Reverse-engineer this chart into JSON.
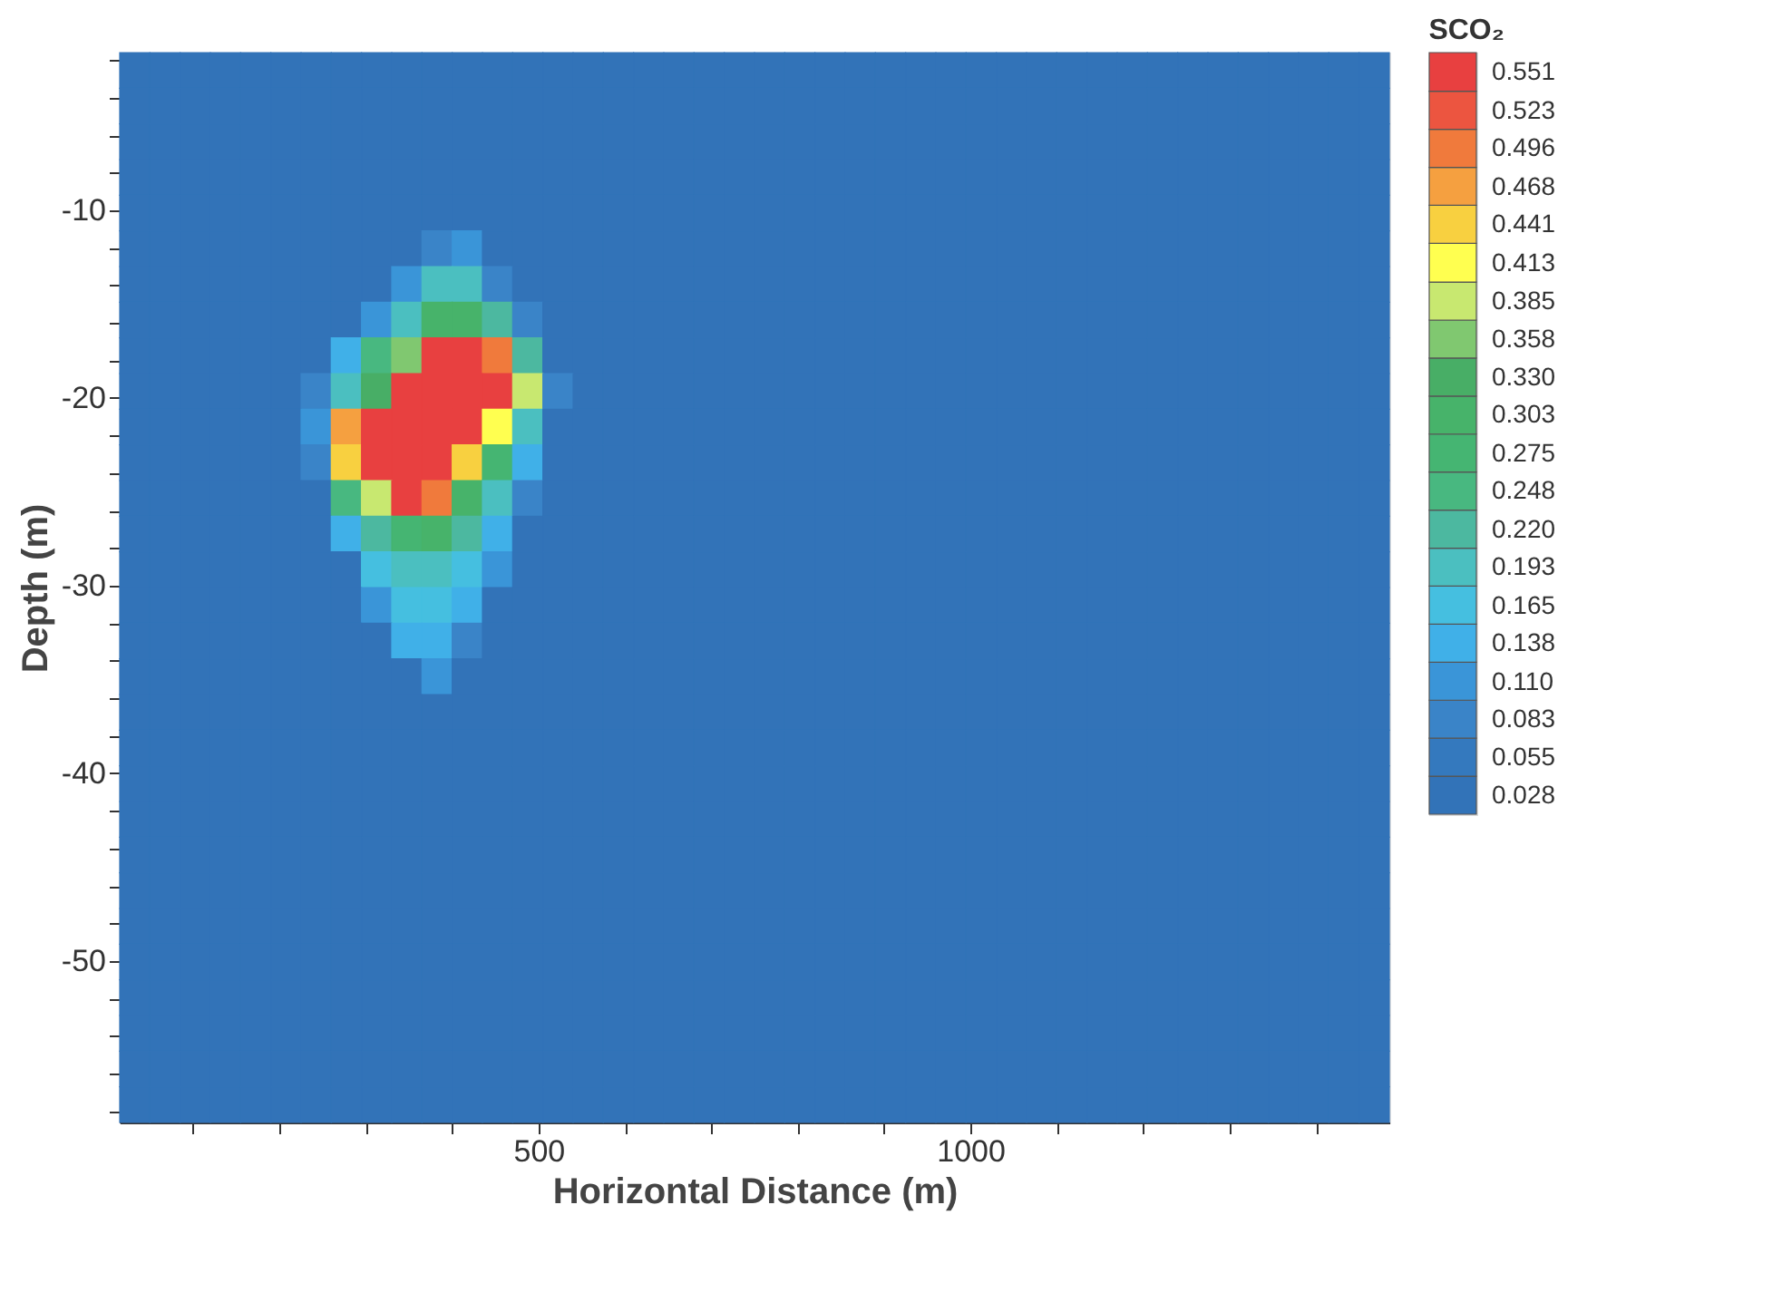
{
  "chart_data": {
    "type": "heatmap",
    "xlabel": "Horizontal Distance (m)",
    "ylabel": "Depth (m)",
    "legend_title": "SCO₂",
    "x": [
      32.5,
      67.5,
      102.5,
      137.5,
      172.5,
      207.5,
      242.5,
      277.5,
      312.5,
      347.5,
      382.5,
      417.5,
      452.5,
      487.5,
      522.5,
      557.5,
      592.5,
      627.5,
      662.5,
      697.5,
      732.5,
      767.5,
      802.5,
      837.5,
      872.5,
      907.5,
      942.5,
      977.5,
      1012.5,
      1047.5,
      1082.5,
      1117.5,
      1152.5,
      1187.5,
      1222.5,
      1257.5,
      1292.5,
      1327.5,
      1362.5,
      1397.5,
      1432.5,
      1467.5
    ],
    "y": [
      -2.55,
      -4.45,
      -6.35,
      -8.25,
      -10.15,
      -12.05,
      -13.95,
      -15.85,
      -17.75,
      -19.65,
      -21.55,
      -23.45,
      -25.35,
      -27.25,
      -29.15,
      -31.05,
      -32.95,
      -34.85,
      -36.75,
      -38.65,
      -40.55,
      -42.45,
      -44.35,
      -46.25,
      -48.15,
      -50.05,
      -51.95,
      -53.85,
      -55.75,
      -57.65
    ],
    "cells": [
      [
        0.028,
        0.028,
        0.028,
        0.028,
        0.028,
        0.028,
        0.028,
        0.028,
        0.028,
        0.028,
        0.028,
        0.028,
        0.028,
        0.028,
        0.028,
        0.028,
        0.028,
        0.028,
        0.028,
        0.028,
        0.028,
        0.028,
        0.028,
        0.028,
        0.028,
        0.028,
        0.028,
        0.028,
        0.028,
        0.028,
        0.028,
        0.028,
        0.028,
        0.028,
        0.028,
        0.028,
        0.028,
        0.028,
        0.028,
        0.028,
        0.028,
        0.028
      ],
      [
        0.028,
        0.028,
        0.028,
        0.028,
        0.028,
        0.028,
        0.028,
        0.028,
        0.028,
        0.028,
        0.028,
        0.028,
        0.028,
        0.028,
        0.028,
        0.028,
        0.028,
        0.028,
        0.028,
        0.028,
        0.028,
        0.028,
        0.028,
        0.028,
        0.028,
        0.028,
        0.028,
        0.028,
        0.028,
        0.028,
        0.028,
        0.028,
        0.028,
        0.028,
        0.028,
        0.028,
        0.028,
        0.028,
        0.028,
        0.028,
        0.028,
        0.028
      ],
      [
        0.028,
        0.028,
        0.028,
        0.028,
        0.028,
        0.028,
        0.028,
        0.028,
        0.028,
        0.028,
        0.028,
        0.028,
        0.028,
        0.028,
        0.028,
        0.028,
        0.028,
        0.028,
        0.028,
        0.028,
        0.028,
        0.028,
        0.028,
        0.028,
        0.028,
        0.028,
        0.028,
        0.028,
        0.028,
        0.028,
        0.028,
        0.028,
        0.028,
        0.028,
        0.028,
        0.028,
        0.028,
        0.028,
        0.028,
        0.028,
        0.028,
        0.028
      ],
      [
        0.028,
        0.028,
        0.028,
        0.028,
        0.028,
        0.028,
        0.028,
        0.028,
        0.028,
        0.028,
        0.028,
        0.028,
        0.028,
        0.028,
        0.028,
        0.028,
        0.028,
        0.028,
        0.028,
        0.028,
        0.028,
        0.028,
        0.028,
        0.028,
        0.028,
        0.028,
        0.028,
        0.028,
        0.028,
        0.028,
        0.028,
        0.028,
        0.028,
        0.028,
        0.028,
        0.028,
        0.028,
        0.028,
        0.028,
        0.028,
        0.028,
        0.028
      ],
      [
        0.028,
        0.028,
        0.028,
        0.028,
        0.028,
        0.028,
        0.028,
        0.028,
        0.028,
        0.028,
        0.028,
        0.028,
        0.028,
        0.028,
        0.028,
        0.028,
        0.028,
        0.028,
        0.028,
        0.028,
        0.028,
        0.028,
        0.028,
        0.028,
        0.028,
        0.028,
        0.028,
        0.028,
        0.028,
        0.028,
        0.028,
        0.028,
        0.028,
        0.028,
        0.028,
        0.028,
        0.028,
        0.028,
        0.028,
        0.028,
        0.028,
        0.028
      ],
      [
        0.028,
        0.028,
        0.028,
        0.028,
        0.028,
        0.028,
        0.028,
        0.028,
        0.028,
        0.028,
        0.083,
        0.11,
        0.028,
        0.028,
        0.028,
        0.028,
        0.028,
        0.028,
        0.028,
        0.028,
        0.028,
        0.028,
        0.028,
        0.028,
        0.028,
        0.028,
        0.028,
        0.028,
        0.028,
        0.028,
        0.028,
        0.028,
        0.028,
        0.028,
        0.028,
        0.028,
        0.028,
        0.028,
        0.028,
        0.028,
        0.028,
        0.028
      ],
      [
        0.028,
        0.028,
        0.028,
        0.028,
        0.028,
        0.028,
        0.028,
        0.028,
        0.028,
        0.11,
        0.193,
        0.193,
        0.083,
        0.028,
        0.028,
        0.028,
        0.028,
        0.028,
        0.028,
        0.028,
        0.028,
        0.028,
        0.028,
        0.028,
        0.028,
        0.028,
        0.028,
        0.028,
        0.028,
        0.028,
        0.028,
        0.028,
        0.028,
        0.028,
        0.028,
        0.028,
        0.028,
        0.028,
        0.028,
        0.028,
        0.028,
        0.028
      ],
      [
        0.028,
        0.028,
        0.028,
        0.028,
        0.028,
        0.028,
        0.028,
        0.028,
        0.11,
        0.193,
        0.303,
        0.303,
        0.22,
        0.083,
        0.028,
        0.028,
        0.028,
        0.028,
        0.028,
        0.028,
        0.028,
        0.028,
        0.028,
        0.028,
        0.028,
        0.028,
        0.028,
        0.028,
        0.028,
        0.028,
        0.028,
        0.028,
        0.028,
        0.028,
        0.028,
        0.028,
        0.028,
        0.028,
        0.028,
        0.028,
        0.028,
        0.028
      ],
      [
        0.028,
        0.028,
        0.028,
        0.028,
        0.028,
        0.028,
        0.028,
        0.138,
        0.248,
        0.358,
        0.551,
        0.551,
        0.496,
        0.22,
        0.028,
        0.028,
        0.028,
        0.028,
        0.028,
        0.028,
        0.028,
        0.028,
        0.028,
        0.028,
        0.028,
        0.028,
        0.028,
        0.028,
        0.028,
        0.028,
        0.028,
        0.028,
        0.028,
        0.028,
        0.028,
        0.028,
        0.028,
        0.028,
        0.028,
        0.028,
        0.028,
        0.028
      ],
      [
        0.028,
        0.028,
        0.028,
        0.028,
        0.028,
        0.028,
        0.083,
        0.193,
        0.33,
        0.551,
        0.551,
        0.551,
        0.551,
        0.385,
        0.083,
        0.028,
        0.028,
        0.028,
        0.028,
        0.028,
        0.028,
        0.028,
        0.028,
        0.028,
        0.028,
        0.028,
        0.028,
        0.028,
        0.028,
        0.028,
        0.028,
        0.028,
        0.028,
        0.028,
        0.028,
        0.028,
        0.028,
        0.028,
        0.028,
        0.028,
        0.028,
        0.028
      ],
      [
        0.028,
        0.028,
        0.028,
        0.028,
        0.028,
        0.028,
        0.11,
        0.468,
        0.551,
        0.551,
        0.551,
        0.551,
        0.413,
        0.193,
        0.028,
        0.028,
        0.028,
        0.028,
        0.028,
        0.028,
        0.028,
        0.028,
        0.028,
        0.028,
        0.028,
        0.028,
        0.028,
        0.028,
        0.028,
        0.028,
        0.028,
        0.028,
        0.028,
        0.028,
        0.028,
        0.028,
        0.028,
        0.028,
        0.028,
        0.028,
        0.028,
        0.028
      ],
      [
        0.028,
        0.028,
        0.028,
        0.028,
        0.028,
        0.028,
        0.083,
        0.441,
        0.551,
        0.551,
        0.551,
        0.441,
        0.275,
        0.138,
        0.028,
        0.028,
        0.028,
        0.028,
        0.028,
        0.028,
        0.028,
        0.028,
        0.028,
        0.028,
        0.028,
        0.028,
        0.028,
        0.028,
        0.028,
        0.028,
        0.028,
        0.028,
        0.028,
        0.028,
        0.028,
        0.028,
        0.028,
        0.028,
        0.028,
        0.028,
        0.028,
        0.028
      ],
      [
        0.028,
        0.028,
        0.028,
        0.028,
        0.028,
        0.028,
        0.028,
        0.248,
        0.385,
        0.551,
        0.496,
        0.303,
        0.193,
        0.083,
        0.028,
        0.028,
        0.028,
        0.028,
        0.028,
        0.028,
        0.028,
        0.028,
        0.028,
        0.028,
        0.028,
        0.028,
        0.028,
        0.028,
        0.028,
        0.028,
        0.028,
        0.028,
        0.028,
        0.028,
        0.028,
        0.028,
        0.028,
        0.028,
        0.028,
        0.028,
        0.028,
        0.028
      ],
      [
        0.028,
        0.028,
        0.028,
        0.028,
        0.028,
        0.028,
        0.028,
        0.138,
        0.22,
        0.275,
        0.303,
        0.22,
        0.138,
        0.028,
        0.028,
        0.028,
        0.028,
        0.028,
        0.028,
        0.028,
        0.028,
        0.028,
        0.028,
        0.028,
        0.028,
        0.028,
        0.028,
        0.028,
        0.028,
        0.028,
        0.028,
        0.028,
        0.028,
        0.028,
        0.028,
        0.028,
        0.028,
        0.028,
        0.028,
        0.028,
        0.028,
        0.028
      ],
      [
        0.028,
        0.028,
        0.028,
        0.028,
        0.028,
        0.028,
        0.028,
        0.028,
        0.165,
        0.193,
        0.193,
        0.165,
        0.11,
        0.028,
        0.028,
        0.028,
        0.028,
        0.028,
        0.028,
        0.028,
        0.028,
        0.028,
        0.028,
        0.028,
        0.028,
        0.028,
        0.028,
        0.028,
        0.028,
        0.028,
        0.028,
        0.028,
        0.028,
        0.028,
        0.028,
        0.028,
        0.028,
        0.028,
        0.028,
        0.028,
        0.028,
        0.028
      ],
      [
        0.028,
        0.028,
        0.028,
        0.028,
        0.028,
        0.028,
        0.028,
        0.028,
        0.11,
        0.165,
        0.165,
        0.138,
        0.028,
        0.028,
        0.028,
        0.028,
        0.028,
        0.028,
        0.028,
        0.028,
        0.028,
        0.028,
        0.028,
        0.028,
        0.028,
        0.028,
        0.028,
        0.028,
        0.028,
        0.028,
        0.028,
        0.028,
        0.028,
        0.028,
        0.028,
        0.028,
        0.028,
        0.028,
        0.028,
        0.028,
        0.028,
        0.028
      ],
      [
        0.028,
        0.028,
        0.028,
        0.028,
        0.028,
        0.028,
        0.028,
        0.028,
        0.028,
        0.138,
        0.138,
        0.083,
        0.028,
        0.028,
        0.028,
        0.028,
        0.028,
        0.028,
        0.028,
        0.028,
        0.028,
        0.028,
        0.028,
        0.028,
        0.028,
        0.028,
        0.028,
        0.028,
        0.028,
        0.028,
        0.028,
        0.028,
        0.028,
        0.028,
        0.028,
        0.028,
        0.028,
        0.028,
        0.028,
        0.028,
        0.028,
        0.028
      ],
      [
        0.028,
        0.028,
        0.028,
        0.028,
        0.028,
        0.028,
        0.028,
        0.028,
        0.028,
        0.028,
        0.11,
        0.028,
        0.028,
        0.028,
        0.028,
        0.028,
        0.028,
        0.028,
        0.028,
        0.028,
        0.028,
        0.028,
        0.028,
        0.028,
        0.028,
        0.028,
        0.028,
        0.028,
        0.028,
        0.028,
        0.028,
        0.028,
        0.028,
        0.028,
        0.028,
        0.028,
        0.028,
        0.028,
        0.028,
        0.028,
        0.028,
        0.028
      ],
      [
        0.028,
        0.028,
        0.028,
        0.028,
        0.028,
        0.028,
        0.028,
        0.028,
        0.028,
        0.028,
        0.028,
        0.028,
        0.028,
        0.028,
        0.028,
        0.028,
        0.028,
        0.028,
        0.028,
        0.028,
        0.028,
        0.028,
        0.028,
        0.028,
        0.028,
        0.028,
        0.028,
        0.028,
        0.028,
        0.028,
        0.028,
        0.028,
        0.028,
        0.028,
        0.028,
        0.028,
        0.028,
        0.028,
        0.028,
        0.028,
        0.028,
        0.028
      ],
      [
        0.028,
        0.028,
        0.028,
        0.028,
        0.028,
        0.028,
        0.028,
        0.028,
        0.028,
        0.028,
        0.028,
        0.028,
        0.028,
        0.028,
        0.028,
        0.028,
        0.028,
        0.028,
        0.028,
        0.028,
        0.028,
        0.028,
        0.028,
        0.028,
        0.028,
        0.028,
        0.028,
        0.028,
        0.028,
        0.028,
        0.028,
        0.028,
        0.028,
        0.028,
        0.028,
        0.028,
        0.028,
        0.028,
        0.028,
        0.028,
        0.028,
        0.028
      ],
      [
        0.028,
        0.028,
        0.028,
        0.028,
        0.028,
        0.028,
        0.028,
        0.028,
        0.028,
        0.028,
        0.028,
        0.028,
        0.028,
        0.028,
        0.028,
        0.028,
        0.028,
        0.028,
        0.028,
        0.028,
        0.028,
        0.028,
        0.028,
        0.028,
        0.028,
        0.028,
        0.028,
        0.028,
        0.028,
        0.028,
        0.028,
        0.028,
        0.028,
        0.028,
        0.028,
        0.028,
        0.028,
        0.028,
        0.028,
        0.028,
        0.028,
        0.028
      ],
      [
        0.028,
        0.028,
        0.028,
        0.028,
        0.028,
        0.028,
        0.028,
        0.028,
        0.028,
        0.028,
        0.028,
        0.028,
        0.028,
        0.028,
        0.028,
        0.028,
        0.028,
        0.028,
        0.028,
        0.028,
        0.028,
        0.028,
        0.028,
        0.028,
        0.028,
        0.028,
        0.028,
        0.028,
        0.028,
        0.028,
        0.028,
        0.028,
        0.028,
        0.028,
        0.028,
        0.028,
        0.028,
        0.028,
        0.028,
        0.028,
        0.028,
        0.028
      ],
      [
        0.028,
        0.028,
        0.028,
        0.028,
        0.028,
        0.028,
        0.028,
        0.028,
        0.028,
        0.028,
        0.028,
        0.028,
        0.028,
        0.028,
        0.028,
        0.028,
        0.028,
        0.028,
        0.028,
        0.028,
        0.028,
        0.028,
        0.028,
        0.028,
        0.028,
        0.028,
        0.028,
        0.028,
        0.028,
        0.028,
        0.028,
        0.028,
        0.028,
        0.028,
        0.028,
        0.028,
        0.028,
        0.028,
        0.028,
        0.028,
        0.028,
        0.028
      ],
      [
        0.028,
        0.028,
        0.028,
        0.028,
        0.028,
        0.028,
        0.028,
        0.028,
        0.028,
        0.028,
        0.028,
        0.028,
        0.028,
        0.028,
        0.028,
        0.028,
        0.028,
        0.028,
        0.028,
        0.028,
        0.028,
        0.028,
        0.028,
        0.028,
        0.028,
        0.028,
        0.028,
        0.028,
        0.028,
        0.028,
        0.028,
        0.028,
        0.028,
        0.028,
        0.028,
        0.028,
        0.028,
        0.028,
        0.028,
        0.028,
        0.028,
        0.028
      ],
      [
        0.028,
        0.028,
        0.028,
        0.028,
        0.028,
        0.028,
        0.028,
        0.028,
        0.028,
        0.028,
        0.028,
        0.028,
        0.028,
        0.028,
        0.028,
        0.028,
        0.028,
        0.028,
        0.028,
        0.028,
        0.028,
        0.028,
        0.028,
        0.028,
        0.028,
        0.028,
        0.028,
        0.028,
        0.028,
        0.028,
        0.028,
        0.028,
        0.028,
        0.028,
        0.028,
        0.028,
        0.028,
        0.028,
        0.028,
        0.028,
        0.028,
        0.028
      ],
      [
        0.028,
        0.028,
        0.028,
        0.028,
        0.028,
        0.028,
        0.028,
        0.028,
        0.028,
        0.028,
        0.028,
        0.028,
        0.028,
        0.028,
        0.028,
        0.028,
        0.028,
        0.028,
        0.028,
        0.028,
        0.028,
        0.028,
        0.028,
        0.028,
        0.028,
        0.028,
        0.028,
        0.028,
        0.028,
        0.028,
        0.028,
        0.028,
        0.028,
        0.028,
        0.028,
        0.028,
        0.028,
        0.028,
        0.028,
        0.028,
        0.028,
        0.028
      ],
      [
        0.028,
        0.028,
        0.028,
        0.028,
        0.028,
        0.028,
        0.028,
        0.028,
        0.028,
        0.028,
        0.028,
        0.028,
        0.028,
        0.028,
        0.028,
        0.028,
        0.028,
        0.028,
        0.028,
        0.028,
        0.028,
        0.028,
        0.028,
        0.028,
        0.028,
        0.028,
        0.028,
        0.028,
        0.028,
        0.028,
        0.028,
        0.028,
        0.028,
        0.028,
        0.028,
        0.028,
        0.028,
        0.028,
        0.028,
        0.028,
        0.028,
        0.028
      ],
      [
        0.028,
        0.028,
        0.028,
        0.028,
        0.028,
        0.028,
        0.028,
        0.028,
        0.028,
        0.028,
        0.028,
        0.028,
        0.028,
        0.028,
        0.028,
        0.028,
        0.028,
        0.028,
        0.028,
        0.028,
        0.028,
        0.028,
        0.028,
        0.028,
        0.028,
        0.028,
        0.028,
        0.028,
        0.028,
        0.028,
        0.028,
        0.028,
        0.028,
        0.028,
        0.028,
        0.028,
        0.028,
        0.028,
        0.028,
        0.028,
        0.028,
        0.028
      ],
      [
        0.028,
        0.028,
        0.028,
        0.028,
        0.028,
        0.028,
        0.028,
        0.028,
        0.028,
        0.028,
        0.028,
        0.028,
        0.028,
        0.028,
        0.028,
        0.028,
        0.028,
        0.028,
        0.028,
        0.028,
        0.028,
        0.028,
        0.028,
        0.028,
        0.028,
        0.028,
        0.028,
        0.028,
        0.028,
        0.028,
        0.028,
        0.028,
        0.028,
        0.028,
        0.028,
        0.028,
        0.028,
        0.028,
        0.028,
        0.028,
        0.028,
        0.028
      ],
      [
        0.028,
        0.028,
        0.028,
        0.028,
        0.028,
        0.028,
        0.028,
        0.028,
        0.028,
        0.028,
        0.028,
        0.028,
        0.028,
        0.028,
        0.028,
        0.028,
        0.028,
        0.028,
        0.028,
        0.028,
        0.028,
        0.028,
        0.028,
        0.028,
        0.028,
        0.028,
        0.028,
        0.028,
        0.028,
        0.028,
        0.028,
        0.028,
        0.028,
        0.028,
        0.028,
        0.028,
        0.028,
        0.028,
        0.028,
        0.028,
        0.028,
        0.028
      ]
    ],
    "xlim": [
      15,
      1485
    ],
    "ylim": [
      -58.6,
      -1.6
    ],
    "xticks": [
      {
        "value": 100,
        "label": null
      },
      {
        "value": 200,
        "label": null
      },
      {
        "value": 300,
        "label": null
      },
      {
        "value": 400,
        "label": null
      },
      500,
      {
        "value": 600,
        "label": null
      },
      {
        "value": 700,
        "label": null
      },
      {
        "value": 800,
        "label": null
      },
      {
        "value": 900,
        "label": null
      },
      1000,
      {
        "value": 1100,
        "label": null
      },
      {
        "value": 1200,
        "label": null
      },
      {
        "value": 1300,
        "label": null
      },
      {
        "value": 1400,
        "label": null
      }
    ],
    "yticks": [
      {
        "value": -2,
        "label": null
      },
      {
        "value": -4,
        "label": null
      },
      {
        "value": -6,
        "label": null
      },
      {
        "value": -8,
        "label": null
      },
      -10,
      {
        "value": -12,
        "label": null
      },
      {
        "value": -14,
        "label": null
      },
      {
        "value": -16,
        "label": null
      },
      {
        "value": -18,
        "label": null
      },
      -20,
      {
        "value": -22,
        "label": null
      },
      {
        "value": -24,
        "label": null
      },
      {
        "value": -26,
        "label": null
      },
      {
        "value": -28,
        "label": null
      },
      -30,
      {
        "value": -32,
        "label": null
      },
      {
        "value": -34,
        "label": null
      },
      {
        "value": -36,
        "label": null
      },
      {
        "value": -38,
        "label": null
      },
      -40,
      {
        "value": -42,
        "label": null
      },
      {
        "value": -44,
        "label": null
      },
      {
        "value": -46,
        "label": null
      },
      {
        "value": -48,
        "label": null
      },
      -50,
      {
        "value": -52,
        "label": null
      },
      {
        "value": -54,
        "label": null
      },
      {
        "value": -56,
        "label": null
      },
      {
        "value": -58,
        "label": null
      }
    ],
    "clim": [
      0.014,
      0.565
    ],
    "cticks": [
      0.028,
      0.055,
      0.083,
      {
        "value": 0.11,
        "label": "0.110"
      },
      0.138,
      0.165,
      0.193,
      {
        "value": 0.22,
        "label": "0.220"
      },
      0.248,
      0.275,
      0.303,
      {
        "value": 0.33,
        "label": "0.330"
      },
      0.358,
      0.385,
      0.413,
      0.441,
      0.468,
      0.496,
      0.523,
      0.551
    ],
    "colors": [
      "#3273b8",
      "#3479be",
      "#3a84c8",
      "#3a95d8",
      "#40b0e8",
      "#45bfe0",
      "#4bbfc0",
      "#4cb8a0",
      "#48b880",
      "#45b572",
      "#47b36a",
      "#48ae66",
      "#80c870",
      "#c8e870",
      "#ffff50",
      "#f8d040",
      "#f5a040",
      "#f07a3c",
      "#ec5540",
      "#e84040"
    ]
  }
}
